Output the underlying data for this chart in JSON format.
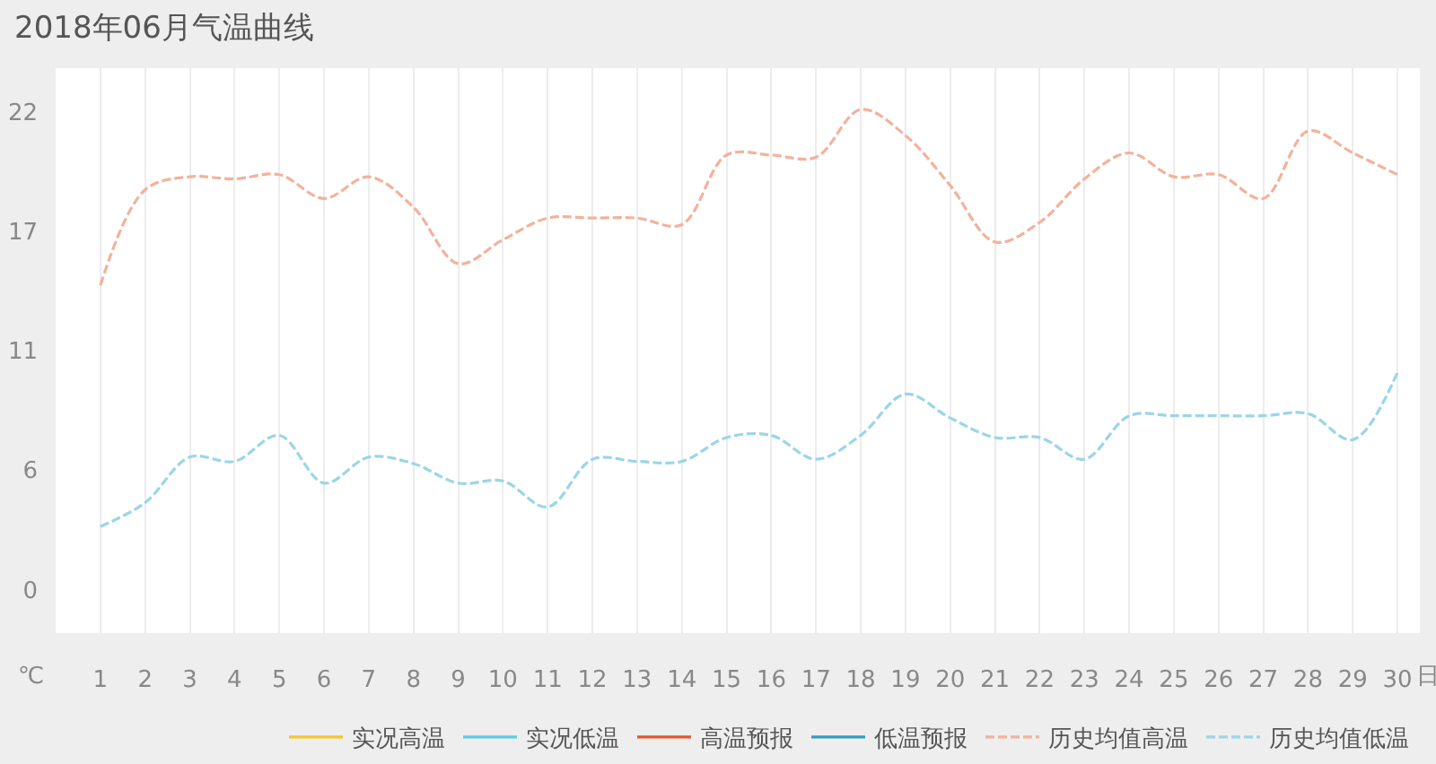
{
  "chart_data": {
    "type": "line",
    "title": "2018年06月气温曲线",
    "xlabel": "日",
    "ylabel": "℃",
    "x": [
      1,
      2,
      3,
      4,
      5,
      6,
      7,
      8,
      9,
      10,
      11,
      12,
      13,
      14,
      15,
      16,
      17,
      18,
      19,
      20,
      21,
      22,
      23,
      24,
      25,
      26,
      27,
      28,
      29,
      30
    ],
    "xlim": [
      0,
      30.5
    ],
    "xticks": [
      1,
      2,
      3,
      4,
      5,
      6,
      7,
      8,
      9,
      10,
      11,
      12,
      13,
      14,
      15,
      16,
      17,
      18,
      19,
      20,
      21,
      22,
      23,
      24,
      25,
      26,
      27,
      28,
      29,
      30
    ],
    "ylim": [
      -2,
      24
    ],
    "yticks": [
      0,
      {
        "value": 5.5,
        "label": "6"
      },
      11,
      {
        "value": 16.5,
        "label": "17"
      },
      22
    ],
    "grid": "x",
    "legend": "bottom right",
    "series": [
      {
        "name": "实况高温",
        "color": "#f5c52a",
        "line_style": "solid",
        "values": [
          null,
          null,
          null,
          null,
          null,
          null,
          null,
          null,
          null,
          null,
          null,
          null,
          null,
          null,
          null,
          null,
          null,
          null,
          null,
          null,
          null,
          null,
          null,
          null,
          null,
          null,
          null,
          null,
          null,
          null
        ]
      },
      {
        "name": "实况低温",
        "color": "#5ccbe8",
        "line_style": "solid",
        "values": [
          null,
          null,
          null,
          null,
          null,
          null,
          null,
          null,
          null,
          null,
          null,
          null,
          null,
          null,
          null,
          null,
          null,
          null,
          null,
          null,
          null,
          null,
          null,
          null,
          null,
          null,
          null,
          null,
          null,
          null
        ]
      },
      {
        "name": "高温预报",
        "color": "#e5532d",
        "line_style": "solid",
        "values": [
          null,
          null,
          null,
          null,
          null,
          null,
          null,
          null,
          null,
          null,
          null,
          null,
          null,
          null,
          null,
          null,
          null,
          null,
          null,
          null,
          null,
          null,
          null,
          null,
          null,
          null,
          null,
          null,
          null,
          null
        ]
      },
      {
        "name": "低温预报",
        "color": "#2f9cbf",
        "line_style": "solid",
        "values": [
          null,
          null,
          null,
          null,
          null,
          null,
          null,
          null,
          null,
          null,
          null,
          null,
          null,
          null,
          null,
          null,
          null,
          null,
          null,
          null,
          null,
          null,
          null,
          null,
          null,
          null,
          null,
          null,
          null,
          null
        ]
      },
      {
        "name": "历史均值高温",
        "color": "#f2b29c",
        "line_style": "dashed",
        "values": [
          14.0,
          18.4,
          19.0,
          18.9,
          19.1,
          18.0,
          19.0,
          17.6,
          15.0,
          16.1,
          17.1,
          17.1,
          17.1,
          16.8,
          20.0,
          20.0,
          19.9,
          22.1,
          20.9,
          18.6,
          16.0,
          16.9,
          18.9,
          20.1,
          19.0,
          19.1,
          18.0,
          21.1,
          20.1,
          19.1
        ]
      },
      {
        "name": "历史均值低温",
        "color": "#9bd5e8",
        "line_style": "dashed",
        "values": [
          2.9,
          4.0,
          6.1,
          5.9,
          7.1,
          4.9,
          6.1,
          5.8,
          4.9,
          5.0,
          3.8,
          6.0,
          5.9,
          5.9,
          7.0,
          7.1,
          6.0,
          7.1,
          9.0,
          7.9,
          7.0,
          7.0,
          6.0,
          8.0,
          8.0,
          8.0,
          8.0,
          8.1,
          6.9,
          10.0
        ]
      }
    ]
  }
}
